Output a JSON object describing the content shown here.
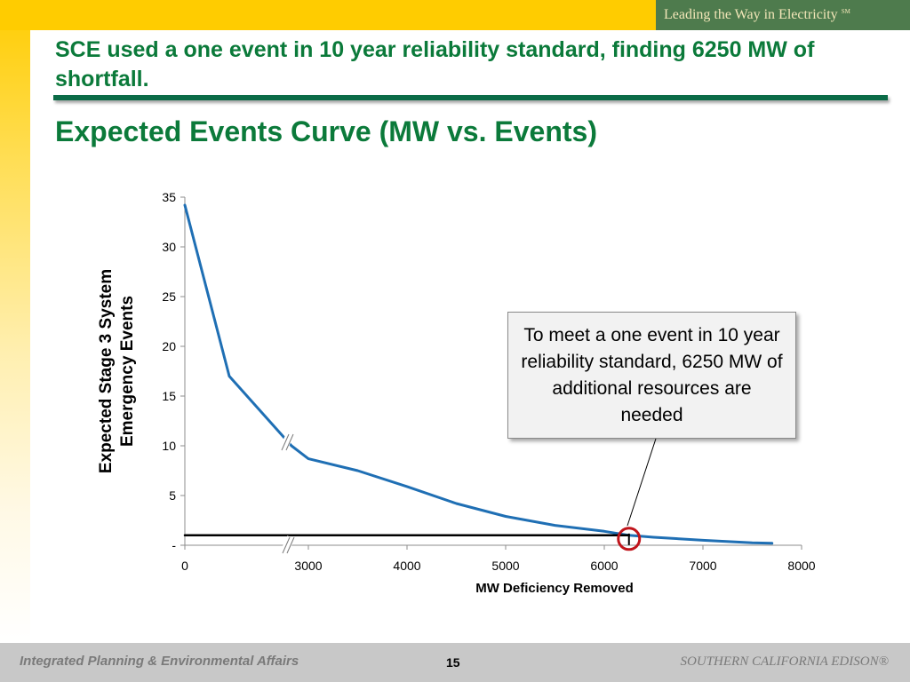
{
  "brand": {
    "tagline": "Leading the Way in Electricity",
    "mark": "SM"
  },
  "slide": {
    "headline": "SCE used a one event in 10 year reliability standard, finding 6250 MW of shortfall.",
    "subtitle": "Expected Events Curve (MW vs. Events)",
    "callout": "To meet a one event in 10 year reliability standard, 6250 MW of additional resources are needed"
  },
  "footer": {
    "left": "Integrated Planning & Environmental Affairs",
    "page": "15",
    "right": "SOUTHERN CALIFORNIA EDISON®"
  },
  "colors": {
    "brand_green": "#0b7a3a",
    "banner_yellow": "#ffcc00",
    "series_blue": "#1f6fb4",
    "marker_red": "#c0141b"
  },
  "chart_data": {
    "type": "line",
    "title": "",
    "xlabel": "MW Deficiency Removed",
    "ylabel": "Expected Stage 3 System Emergency Events",
    "xlim": [
      0,
      8000
    ],
    "ylim": [
      0,
      35
    ],
    "axis_break": "x between 0 and 3000",
    "x_ticks": [
      "0",
      "3000",
      "4000",
      "5000",
      "6000",
      "7000",
      "8000"
    ],
    "x_tick_values": [
      0,
      3000,
      4000,
      5000,
      6000,
      7000,
      8000
    ],
    "y_ticks": [
      "-",
      "5",
      "10",
      "15",
      "20",
      "25",
      "30",
      "35"
    ],
    "y_tick_values": [
      0,
      5,
      10,
      15,
      20,
      25,
      30,
      35
    ],
    "grid": false,
    "series": [
      {
        "color": "#1f6fb4",
        "points": [
          [
            0,
            34.2
          ],
          [
            1000,
            17.0
          ],
          [
            2400,
            10.0
          ],
          [
            3000,
            8.7
          ],
          [
            3500,
            7.5
          ],
          [
            4000,
            5.9
          ],
          [
            4500,
            4.2
          ],
          [
            5000,
            2.9
          ],
          [
            5500,
            2.0
          ],
          [
            6000,
            1.4
          ],
          [
            6250,
            1.0
          ],
          [
            6500,
            0.8
          ],
          [
            7000,
            0.5
          ],
          [
            7500,
            0.25
          ],
          [
            7700,
            0.2
          ]
        ]
      },
      {
        "color": "#000000",
        "points": [
          [
            0,
            1.0
          ],
          [
            6250,
            1.0
          ]
        ]
      }
    ],
    "annotations": [
      {
        "type": "circle",
        "x": 6250,
        "y": 1.0,
        "color": "#c0141b"
      }
    ]
  }
}
